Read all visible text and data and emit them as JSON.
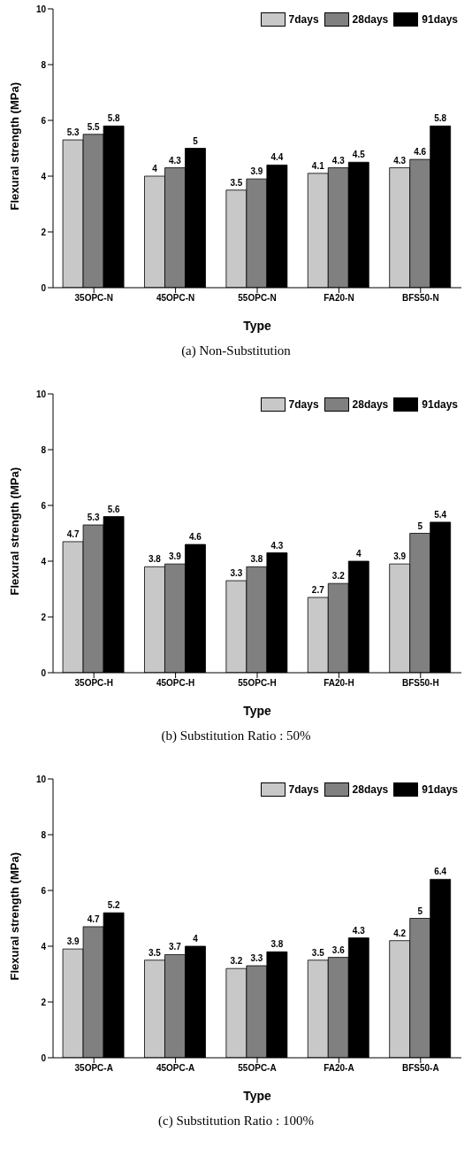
{
  "chart_data": [
    {
      "type": "bar",
      "title": "(a) Non-Substitution",
      "xlabel": "Type",
      "ylabel": "Flexural strength (MPa)",
      "categories": [
        "35OPC-N",
        "45OPC-N",
        "55OPC-N",
        "FA20-N",
        "BFS50-N"
      ],
      "series": [
        {
          "name": "7days",
          "color": "#c8c8c8",
          "values": [
            5.3,
            4,
            3.5,
            4.1,
            4.3
          ]
        },
        {
          "name": "28days",
          "color": "#808080",
          "values": [
            5.5,
            4.3,
            3.9,
            4.3,
            4.6
          ]
        },
        {
          "name": "91days",
          "color": "#000000",
          "values": [
            5.8,
            5,
            4.4,
            4.5,
            5.8
          ]
        }
      ],
      "ylim": [
        0,
        10
      ],
      "yticks": [
        0,
        2,
        4,
        6,
        8,
        10
      ],
      "grid": false,
      "legend": "top right",
      "data_labels": true
    },
    {
      "type": "bar",
      "title": "(b) Substitution Ratio : 50%",
      "xlabel": "Type",
      "ylabel": "Flexural strength (MPa)",
      "categories": [
        "35OPC-H",
        "45OPC-H",
        "55OPC-H",
        "FA20-H",
        "BFS50-H"
      ],
      "series": [
        {
          "name": "7days",
          "color": "#c8c8c8",
          "values": [
            4.7,
            3.8,
            3.3,
            2.7,
            3.9
          ]
        },
        {
          "name": "28days",
          "color": "#808080",
          "values": [
            5.3,
            3.9,
            3.8,
            3.2,
            5
          ]
        },
        {
          "name": "91days",
          "color": "#000000",
          "values": [
            5.6,
            4.6,
            4.3,
            4,
            5.4
          ]
        }
      ],
      "ylim": [
        0,
        10
      ],
      "yticks": [
        0,
        2,
        4,
        6,
        8,
        10
      ],
      "grid": false,
      "legend": "top right",
      "data_labels": true
    },
    {
      "type": "bar",
      "title": "(c) Substitution Ratio : 100%",
      "xlabel": "Type",
      "ylabel": "Flexural strength (MPa)",
      "categories": [
        "35OPC-A",
        "45OPC-A",
        "55OPC-A",
        "FA20-A",
        "BFS50-A"
      ],
      "series": [
        {
          "name": "7days",
          "color": "#c8c8c8",
          "values": [
            3.9,
            3.5,
            3.2,
            3.5,
            4.2
          ]
        },
        {
          "name": "28days",
          "color": "#808080",
          "values": [
            4.7,
            3.7,
            3.3,
            3.6,
            5
          ]
        },
        {
          "name": "91days",
          "color": "#000000",
          "values": [
            5.2,
            4,
            3.8,
            4.3,
            6.4
          ]
        }
      ],
      "ylim": [
        0,
        10
      ],
      "yticks": [
        0,
        2,
        4,
        6,
        8,
        10
      ],
      "grid": false,
      "legend": "top right",
      "data_labels": true
    }
  ]
}
